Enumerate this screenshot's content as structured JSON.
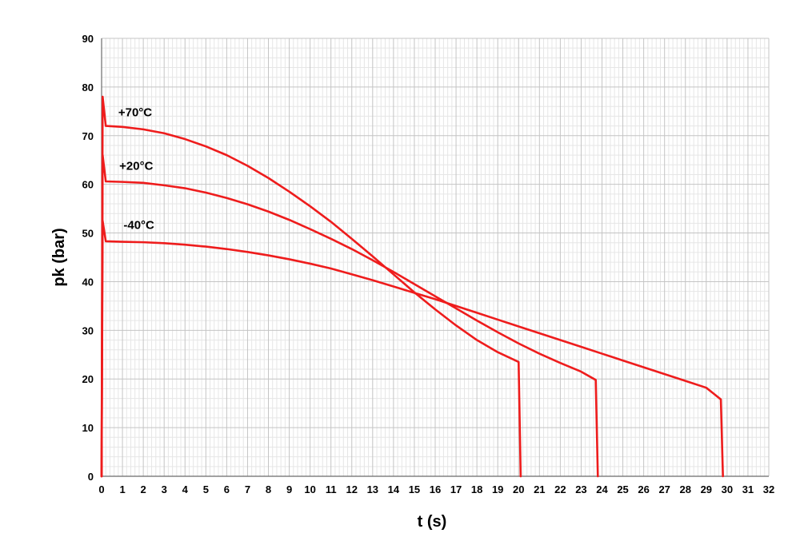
{
  "chart_data": {
    "type": "line",
    "xlabel": "t (s)",
    "ylabel": "pk (bar)",
    "xlim": [
      0,
      32
    ],
    "ylim": [
      0,
      90
    ],
    "x_ticks": [
      0,
      1,
      2,
      3,
      4,
      5,
      6,
      7,
      8,
      9,
      10,
      11,
      12,
      13,
      14,
      15,
      16,
      17,
      18,
      19,
      20,
      21,
      22,
      23,
      24,
      25,
      26,
      27,
      28,
      29,
      30,
      31,
      32
    ],
    "y_ticks": [
      0,
      10,
      20,
      30,
      40,
      50,
      60,
      70,
      80,
      90
    ],
    "grid": true,
    "minor_grid": true,
    "line_color": "#ee1c1c",
    "series": [
      {
        "name": "+70°C",
        "points": [
          [
            0,
            0
          ],
          [
            0.05,
            78
          ],
          [
            0.2,
            72
          ],
          [
            1,
            71.8
          ],
          [
            2,
            71.3
          ],
          [
            3,
            70.5
          ],
          [
            4,
            69.3
          ],
          [
            5,
            67.8
          ],
          [
            6,
            66
          ],
          [
            7,
            63.8
          ],
          [
            8,
            61.3
          ],
          [
            9,
            58.5
          ],
          [
            10,
            55.5
          ],
          [
            11,
            52.3
          ],
          [
            12,
            48.8
          ],
          [
            13,
            45.2
          ],
          [
            14,
            41.5
          ],
          [
            15,
            37.8
          ],
          [
            16,
            34.3
          ],
          [
            17,
            31
          ],
          [
            18,
            28
          ],
          [
            19,
            25.5
          ],
          [
            20,
            23.5
          ],
          [
            20.1,
            0
          ]
        ]
      },
      {
        "name": "+20°C",
        "points": [
          [
            0,
            0
          ],
          [
            0.05,
            66
          ],
          [
            0.2,
            60.6
          ],
          [
            1,
            60.5
          ],
          [
            2,
            60.3
          ],
          [
            3,
            59.8
          ],
          [
            4,
            59.2
          ],
          [
            5,
            58.3
          ],
          [
            6,
            57.2
          ],
          [
            7,
            55.9
          ],
          [
            8,
            54.4
          ],
          [
            9,
            52.7
          ],
          [
            10,
            50.8
          ],
          [
            11,
            48.8
          ],
          [
            12,
            46.7
          ],
          [
            13,
            44.4
          ],
          [
            14,
            42
          ],
          [
            15,
            39.5
          ],
          [
            16,
            37
          ],
          [
            17,
            34.5
          ],
          [
            18,
            32
          ],
          [
            19,
            29.6
          ],
          [
            20,
            27.3
          ],
          [
            21,
            25.2
          ],
          [
            22,
            23.3
          ],
          [
            23,
            21.5
          ],
          [
            23.7,
            19.8
          ],
          [
            23.8,
            0
          ]
        ]
      },
      {
        "name": "-40°C",
        "points": [
          [
            0,
            0
          ],
          [
            0.05,
            52.5
          ],
          [
            0.2,
            48.3
          ],
          [
            1,
            48.2
          ],
          [
            2,
            48.1
          ],
          [
            3,
            47.9
          ],
          [
            4,
            47.6
          ],
          [
            5,
            47.2
          ],
          [
            6,
            46.7
          ],
          [
            7,
            46.1
          ],
          [
            8,
            45.4
          ],
          [
            9,
            44.6
          ],
          [
            10,
            43.7
          ],
          [
            11,
            42.7
          ],
          [
            12,
            41.5
          ],
          [
            13,
            40.3
          ],
          [
            14,
            39
          ],
          [
            15,
            37.7
          ],
          [
            16,
            36.4
          ],
          [
            17,
            35
          ],
          [
            18,
            33.6
          ],
          [
            19,
            32.2
          ],
          [
            20,
            30.8
          ],
          [
            21,
            29.4
          ],
          [
            22,
            28
          ],
          [
            23,
            26.6
          ],
          [
            24,
            25.2
          ],
          [
            25,
            23.8
          ],
          [
            26,
            22.4
          ],
          [
            27,
            21
          ],
          [
            28,
            19.6
          ],
          [
            29,
            18.2
          ],
          [
            29.7,
            15.8
          ],
          [
            29.8,
            0
          ]
        ]
      }
    ],
    "annotations": [
      {
        "text": "+70°C",
        "x": 0.8,
        "y": 74
      },
      {
        "text": "+20°C",
        "x": 0.85,
        "y": 63
      },
      {
        "text": "-40°C",
        "x": 1.05,
        "y": 50.8
      }
    ]
  }
}
